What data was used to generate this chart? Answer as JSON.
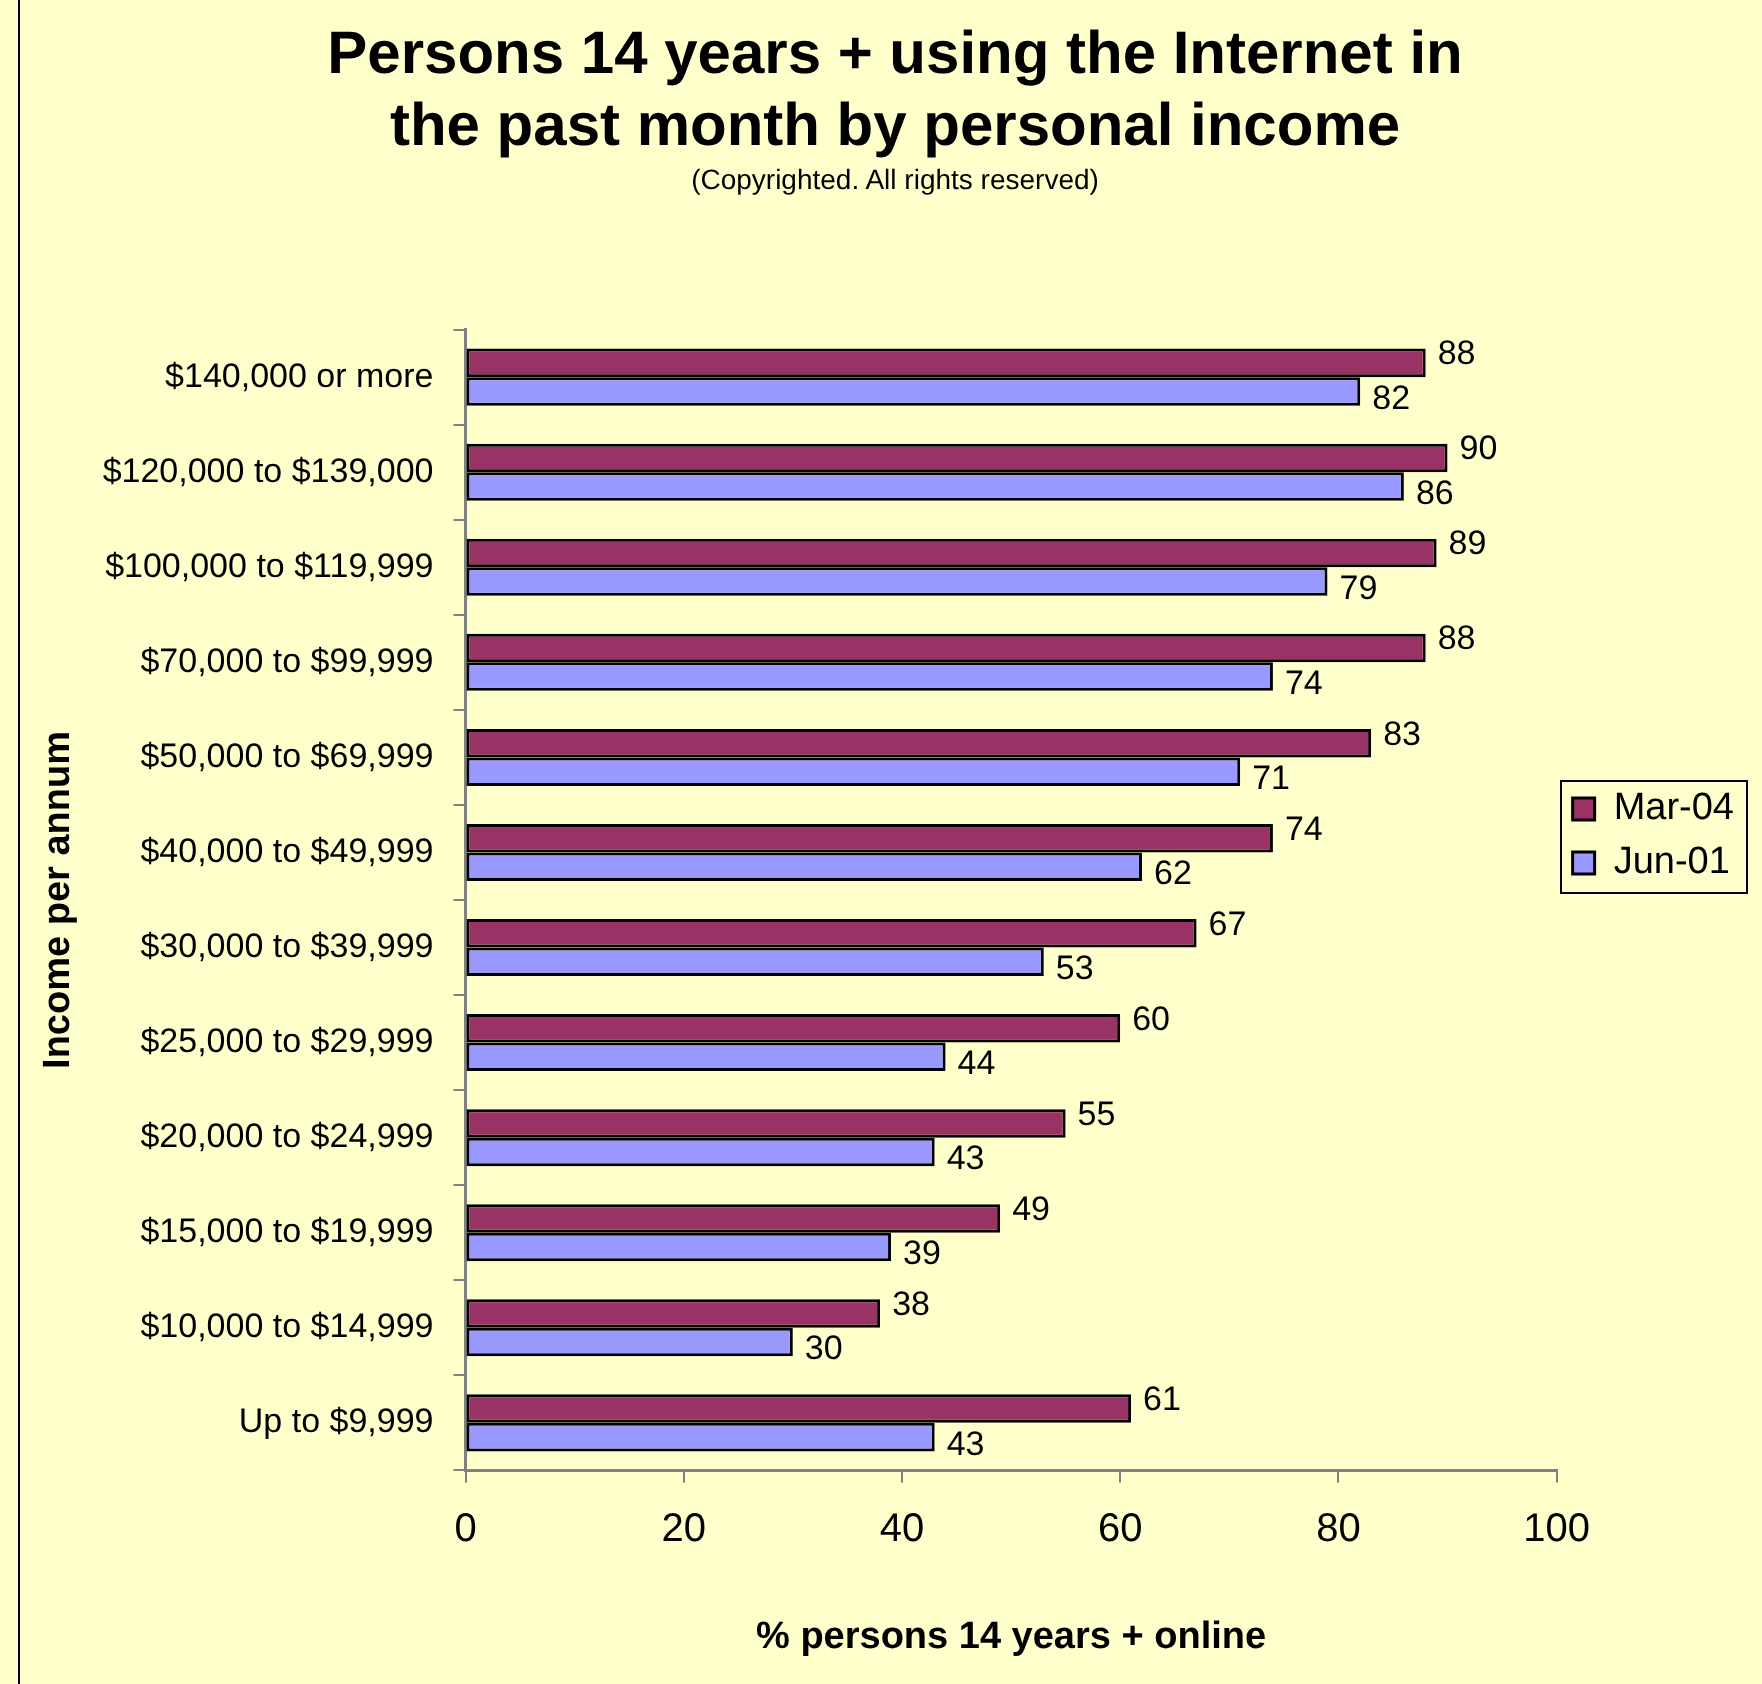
{
  "chart_data": {
    "type": "bar",
    "orientation": "horizontal",
    "title": "Persons 14 years + using the Internet in\nthe past month by personal income",
    "subtitle": "(Copyrighted. All rights reserved)",
    "xlabel": "% persons 14 years + online",
    "ylabel": "Income per annum",
    "categories": [
      "$140,000 or more",
      "$120,000 to $139,000",
      "$100,000 to $119,999",
      "$70,000 to $99,999",
      "$50,000 to $69,999",
      "$40,000 to $49,999",
      "$30,000 to $39,999",
      "$25,000 to $29,999",
      "$20,000 to $24,999",
      "$15,000 to $19,999",
      "$10,000 to $14,999",
      "Up to $9,999"
    ],
    "series": [
      {
        "name": "Mar-04",
        "color": "#993366",
        "values": [
          88,
          90,
          89,
          88,
          83,
          74,
          67,
          60,
          55,
          49,
          38,
          61
        ]
      },
      {
        "name": "Jun-01",
        "color": "#9999ff",
        "values": [
          82,
          86,
          79,
          74,
          71,
          62,
          53,
          44,
          43,
          39,
          30,
          43
        ]
      }
    ],
    "xlim": [
      0,
      100
    ],
    "xticks": [
      0,
      20,
      40,
      60,
      80,
      100
    ],
    "grid": false,
    "legend": "right",
    "data_labels": true
  }
}
